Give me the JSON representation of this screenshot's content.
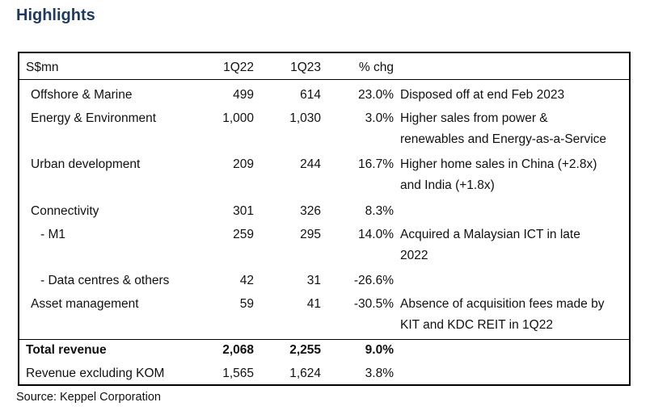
{
  "title": "Highlights",
  "table": {
    "headers": {
      "label": "S$mn",
      "col1": "1Q22",
      "col2": "1Q23",
      "col3": "% chg"
    },
    "rows": [
      {
        "label": "Offshore & Marine",
        "q22": "499",
        "q23": "614",
        "chg": "23.0%",
        "note": [
          "Disposed off at end Feb 2023"
        ]
      },
      {
        "label": "Energy & Environment",
        "q22": "1,000",
        "q23": "1,030",
        "chg": "3.0%",
        "note": [
          "Higher sales from power &",
          "renewables and Energy-as-a-Service"
        ]
      },
      {
        "label": "Urban development",
        "q22": "209",
        "q23": "244",
        "chg": "16.7%",
        "note": [
          "Higher home sales in China (+2.8x)",
          "and India (+1.8x)"
        ]
      },
      {
        "label": "Connectivity",
        "q22": "301",
        "q23": "326",
        "chg": "8.3%",
        "note": []
      },
      {
        "label": "- M1",
        "q22": "259",
        "q23": "295",
        "chg": "14.0%",
        "note": [
          "Acquired a Malaysian ICT in late",
          "2022"
        ]
      },
      {
        "label": "- Data centres & others",
        "q22": "42",
        "q23": "31",
        "chg": "-26.6%",
        "note": []
      },
      {
        "label": "Asset management",
        "q22": "59",
        "q23": "41",
        "chg": "-30.5%",
        "note": [
          "Absence of acquisition fees made by",
          "KIT and KDC REIT in 1Q22"
        ]
      }
    ],
    "total": {
      "label": "Total revenue",
      "q22": "2,068",
      "q23": "2,255",
      "chg": "9.0%"
    },
    "excluding": {
      "label": "Revenue excluding KOM",
      "q22": "1,565",
      "q23": "1,624",
      "chg": "3.8%"
    }
  },
  "source": "Source: Keppel Corporation"
}
